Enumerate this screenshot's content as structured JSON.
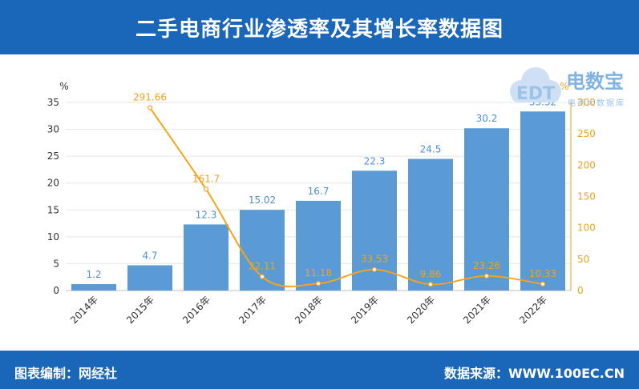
{
  "title": "二手电商行业渗透率及其增长率数据图",
  "footer": {
    "left": "图表编制：网经社",
    "right": "数据来源：WWW.100EC.CN"
  },
  "logo": {
    "name": "电数宝",
    "sub": "电商大数据库",
    "mark": "EDT"
  },
  "colors": {
    "header": "#1a66b8",
    "bar": "#5b9bd5",
    "line": "#f5a31a"
  },
  "chart_data": {
    "type": "bar",
    "categories": [
      "2014年",
      "2015年",
      "2016年",
      "2017年",
      "2018年",
      "2019年",
      "2020年",
      "2021年",
      "2022年"
    ],
    "series": [
      {
        "type": "bar",
        "axis": "left",
        "values": [
          1.2,
          4.7,
          12.3,
          15.02,
          16.7,
          22.3,
          24.5,
          30.2,
          33.32
        ],
        "labels": [
          "1.2",
          "4.7",
          "12.3",
          "15.02",
          "16.7",
          "22.3",
          "24.5",
          "30.2",
          "33.32"
        ]
      },
      {
        "type": "line",
        "axis": "right",
        "values": [
          null,
          291.66,
          161.7,
          22.11,
          11.18,
          33.53,
          9.86,
          23.26,
          10.33
        ],
        "labels": [
          "",
          "291.66",
          "161.7",
          "22.11",
          "11.18",
          "33.53",
          "9.86",
          "23.26",
          "10.33"
        ]
      }
    ],
    "ylabel": "%",
    "y2label": "%",
    "ylim": [
      0,
      35
    ],
    "y2lim": [
      0,
      300
    ],
    "yticks": [
      "0",
      "5",
      "10",
      "15",
      "20",
      "25",
      "30",
      "35"
    ],
    "y2ticks": [
      "0",
      "50",
      "100",
      "150",
      "200",
      "250",
      "300"
    ]
  }
}
